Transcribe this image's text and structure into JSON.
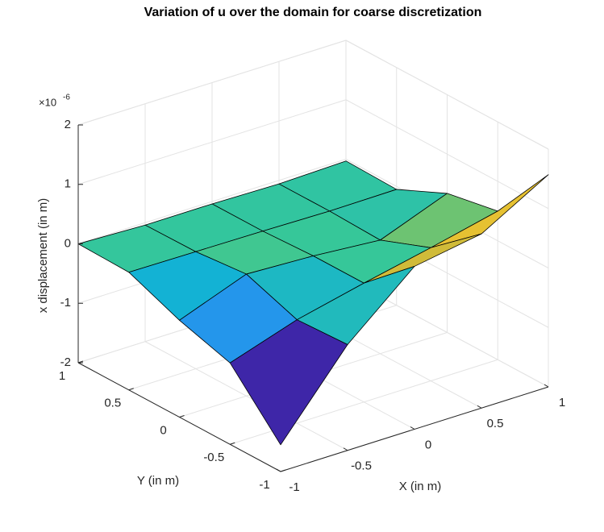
{
  "chart_data": {
    "type": "surface",
    "title": "Variation of u over the domain for coarse discretization",
    "x_label": "X (in m)",
    "y_label": "Y (in m)",
    "z_label": "x displacement (in m)",
    "z_exponent": {
      "base": "×10",
      "power": "-6"
    },
    "x": [
      -1,
      -0.5,
      0,
      0.5,
      1
    ],
    "y": [
      -1,
      -0.5,
      0,
      0.5,
      1
    ],
    "z": [
      [
        -1.55,
        -0.22,
        0.74,
        0.93,
        1.57
      ],
      [
        -0.63,
        -0.26,
        0,
        0.24,
        0.5
      ],
      [
        -0.37,
        0.05,
        0,
        -0.09,
        0.34
      ],
      [
        -0.02,
        -0.03,
        -0.04,
        -0.06,
        -0.05
      ],
      [
        0,
        -0.04,
        -0.04,
        -0.06,
        -0.03
      ]
    ],
    "xlim": [
      -1,
      1
    ],
    "ylim": [
      -1,
      1
    ],
    "zlim": [
      -2,
      2
    ],
    "xticks": [
      -1,
      -0.5,
      0,
      0.5,
      1
    ],
    "yticks": [
      -1,
      -0.5,
      0,
      0.5,
      1
    ],
    "zticks": [
      -2,
      -1,
      0,
      1,
      2
    ],
    "grid": true,
    "colormap": "parula",
    "edge_color": "#000000"
  }
}
